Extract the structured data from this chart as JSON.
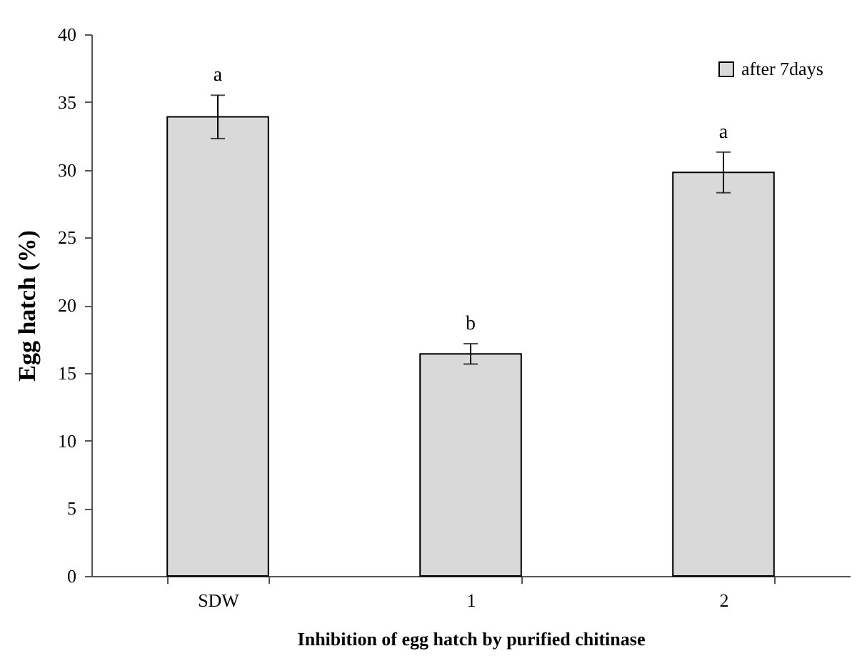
{
  "chart_data": {
    "type": "bar",
    "xlabel": "Inhibition  of egg hatch by purified  chitinase",
    "ylabel": "Egg hatch (%)",
    "categories": [
      "SDW",
      "1",
      "2"
    ],
    "series": [
      {
        "name": "after 7days",
        "color": "#d9d9d9",
        "values": [
          33.9,
          16.4,
          29.8
        ],
        "errors": [
          1.6,
          0.75,
          1.5
        ]
      }
    ],
    "ylim": [
      0,
      40
    ],
    "yticks": [
      0,
      5,
      10,
      15,
      20,
      25,
      30,
      35,
      40
    ],
    "grid": false,
    "legend": "top right",
    "annotations": [
      {
        "text": "a",
        "x": "SDW",
        "y": 35.5
      },
      {
        "text": "b",
        "x": "1",
        "y": 17.15
      },
      {
        "text": "a",
        "x": "2",
        "y": 31.3
      }
    ]
  }
}
